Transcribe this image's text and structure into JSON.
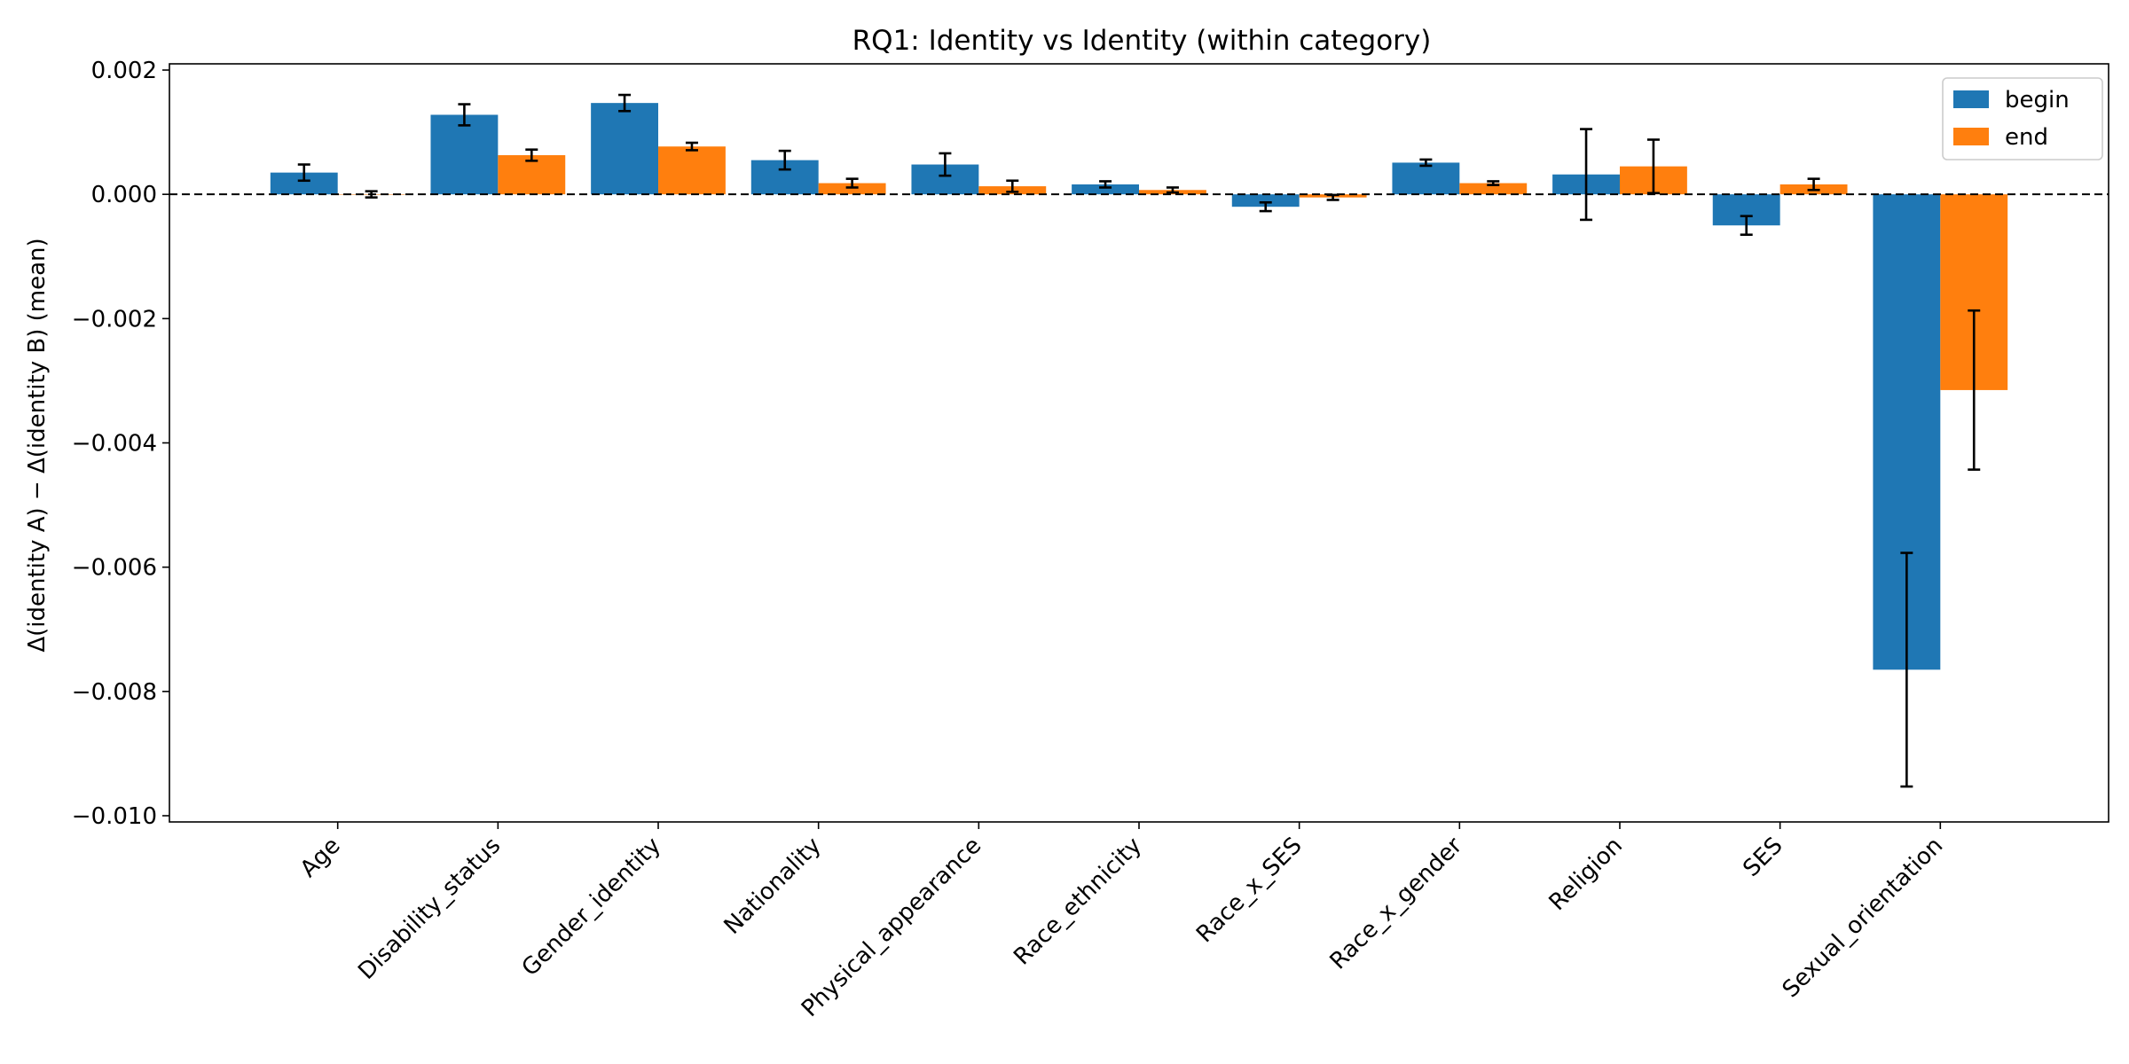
{
  "chart_data": {
    "type": "bar",
    "title": "RQ1: Identity vs Identity (within category)",
    "xlabel": "",
    "ylabel": "Δ(identity A) − Δ(identity B)  (mean)",
    "ylim": [
      -0.0101,
      0.0021
    ],
    "yticks": [
      0.002,
      0.0,
      -0.002,
      -0.004,
      -0.006,
      -0.008,
      -0.01
    ],
    "ytick_labels": [
      "0.002",
      "0.000",
      "−0.002",
      "−0.004",
      "−0.006",
      "−0.008",
      "−0.010"
    ],
    "reference_line": 0.0,
    "grid": false,
    "legend_position": "top-right",
    "categories": [
      "Age",
      "Disability_status",
      "Gender_identity",
      "Nationality",
      "Physical_appearance",
      "Race_ethnicity",
      "Race_x_SES",
      "Race_x_gender",
      "Religion",
      "SES",
      "Sexual_orientation"
    ],
    "series": [
      {
        "name": "begin",
        "color": "#1f77b4",
        "values": [
          0.00035,
          0.00128,
          0.00147,
          0.00055,
          0.00048,
          0.00016,
          -0.0002,
          0.00051,
          0.00032,
          -0.0005,
          -0.00765
        ],
        "errors": [
          0.00013,
          0.00017,
          0.00013,
          0.00015,
          0.00018,
          5e-05,
          7e-05,
          5e-05,
          0.00073,
          0.00015,
          0.00188
        ]
      },
      {
        "name": "end",
        "color": "#ff7f0e",
        "values": [
          0.0,
          0.00063,
          0.00077,
          0.00018,
          0.00013,
          7e-05,
          -5e-05,
          0.00018,
          0.00045,
          0.00016,
          -0.00315
        ],
        "errors": [
          5e-05,
          9e-05,
          6e-05,
          7e-05,
          9e-05,
          4e-05,
          4e-05,
          3e-05,
          0.00043,
          9e-05,
          0.00128
        ]
      }
    ]
  }
}
